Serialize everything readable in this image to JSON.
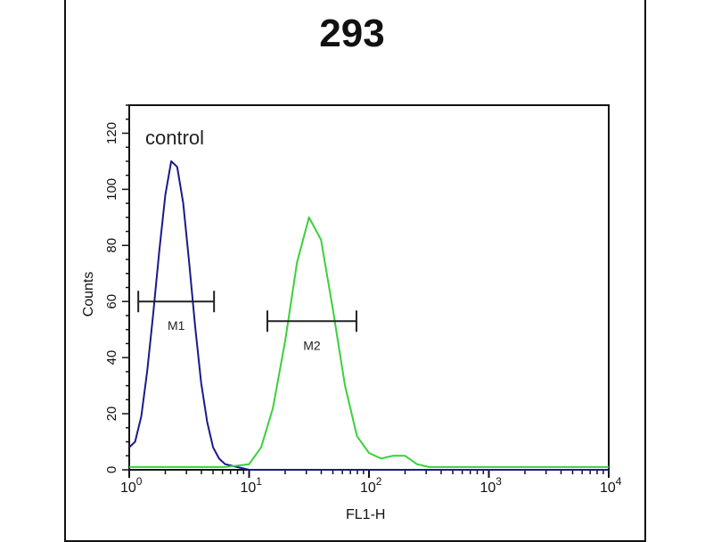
{
  "chart_data": {
    "type": "line",
    "title": "293",
    "xlabel": "FL1-H",
    "ylabel": "Counts",
    "xscale": "log",
    "xlim": [
      1,
      10000
    ],
    "ylim": [
      0,
      130
    ],
    "x_ticks": [
      {
        "base": "10",
        "exp": "0",
        "v": 1
      },
      {
        "base": "10",
        "exp": "1",
        "v": 10
      },
      {
        "base": "10",
        "exp": "2",
        "v": 100
      },
      {
        "base": "10",
        "exp": "3",
        "v": 1000
      },
      {
        "base": "10",
        "exp": "4",
        "v": 10000
      }
    ],
    "y_ticks": [
      0,
      20,
      40,
      60,
      80,
      100,
      120
    ],
    "annotation": "control",
    "series": [
      {
        "color": "#1a1a8c",
        "x": [
          1,
          1.12,
          1.26,
          1.41,
          1.58,
          1.78,
          2.0,
          2.24,
          2.51,
          2.82,
          3.16,
          3.55,
          3.98,
          4.47,
          5.01,
          5.62,
          6.31,
          7.94,
          10,
          100,
          1000,
          10000
        ],
        "y": [
          8,
          10,
          19,
          35,
          55,
          78,
          98,
          110,
          108,
          95,
          74,
          51,
          31,
          17,
          8,
          4,
          2,
          1,
          0,
          0,
          0,
          0
        ]
      },
      {
        "color": "#3ad13a",
        "x": [
          1,
          3.16,
          6.31,
          10,
          12.6,
          15.8,
          20,
          25.1,
          31.6,
          39.8,
          50.1,
          63.1,
          79.4,
          100,
          126,
          158,
          200,
          251,
          316,
          1000,
          10000
        ],
        "y": [
          1,
          1,
          1,
          2,
          8,
          22,
          46,
          74,
          90,
          82,
          57,
          30,
          12,
          6,
          4,
          5,
          5,
          2,
          1,
          1,
          1
        ]
      }
    ],
    "markers": [
      {
        "label": "M1",
        "range": [
          1.19,
          5.1
        ],
        "y": 60
      },
      {
        "label": "M2",
        "range": [
          14.2,
          78.6
        ],
        "y": 53
      }
    ]
  }
}
